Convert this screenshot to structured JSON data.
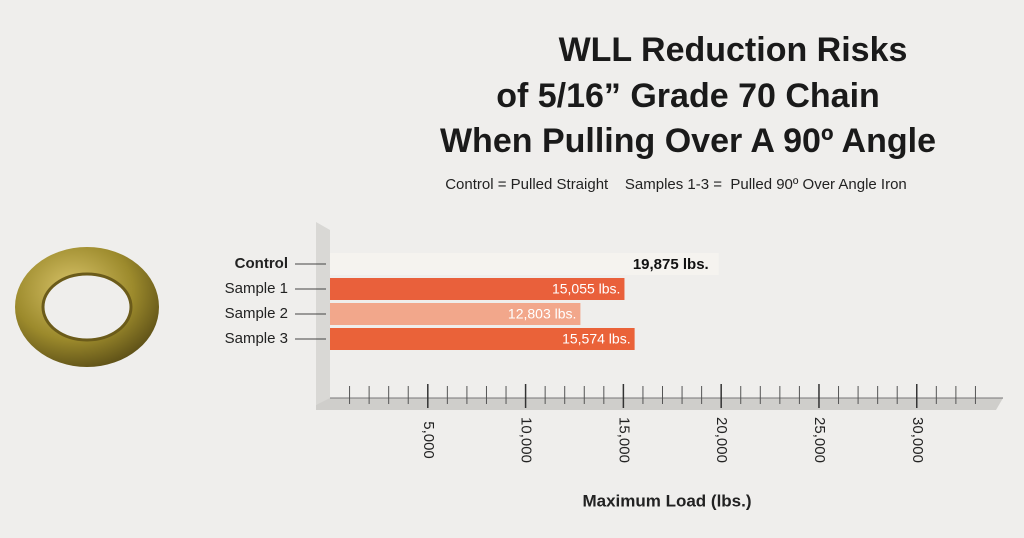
{
  "chart_data": {
    "type": "hbar",
    "title": [
      "WLL Reduction Risks",
      "of 5/16” Grade 70 Chain",
      "When Pulling Over A 90º Angle"
    ],
    "subtitle": "Control = Pulled Straight    Samples 1-3 =  Pulled 90º Over Angle Iron",
    "x_label": "Maximum Load (lbs.)",
    "categories": [
      "Control",
      "Sample 1",
      "Sample 2",
      "Sample 3"
    ],
    "values": [
      19875,
      15055,
      12803,
      15574
    ],
    "value_labels": [
      "19,875 lbs.",
      "15,055 lbs.",
      "12,803 lbs.",
      "15,574 lbs."
    ],
    "colors": [
      "#f5f3ef",
      "#e9603b",
      "#f2a78b",
      "#ea6239"
    ],
    "xlim": [
      0,
      34000
    ],
    "xticks": [
      {
        "value": 5000,
        "label": "5,000"
      },
      {
        "value": 10000,
        "label": "10,000"
      },
      {
        "value": 15000,
        "label": "15,000"
      },
      {
        "value": 20000,
        "label": "20,000"
      },
      {
        "value": 25000,
        "label": "25,000"
      },
      {
        "value": 30000,
        "label": "30,000"
      }
    ],
    "xminorticks": [
      1000,
      2000,
      3000,
      4000,
      6000,
      7000,
      8000,
      9000,
      11000,
      12000,
      13000,
      14000,
      16000,
      17000,
      18000,
      19000,
      21000,
      22000,
      23000,
      24000,
      26000,
      27000,
      28000,
      29000,
      31000,
      32000,
      33000
    ]
  }
}
